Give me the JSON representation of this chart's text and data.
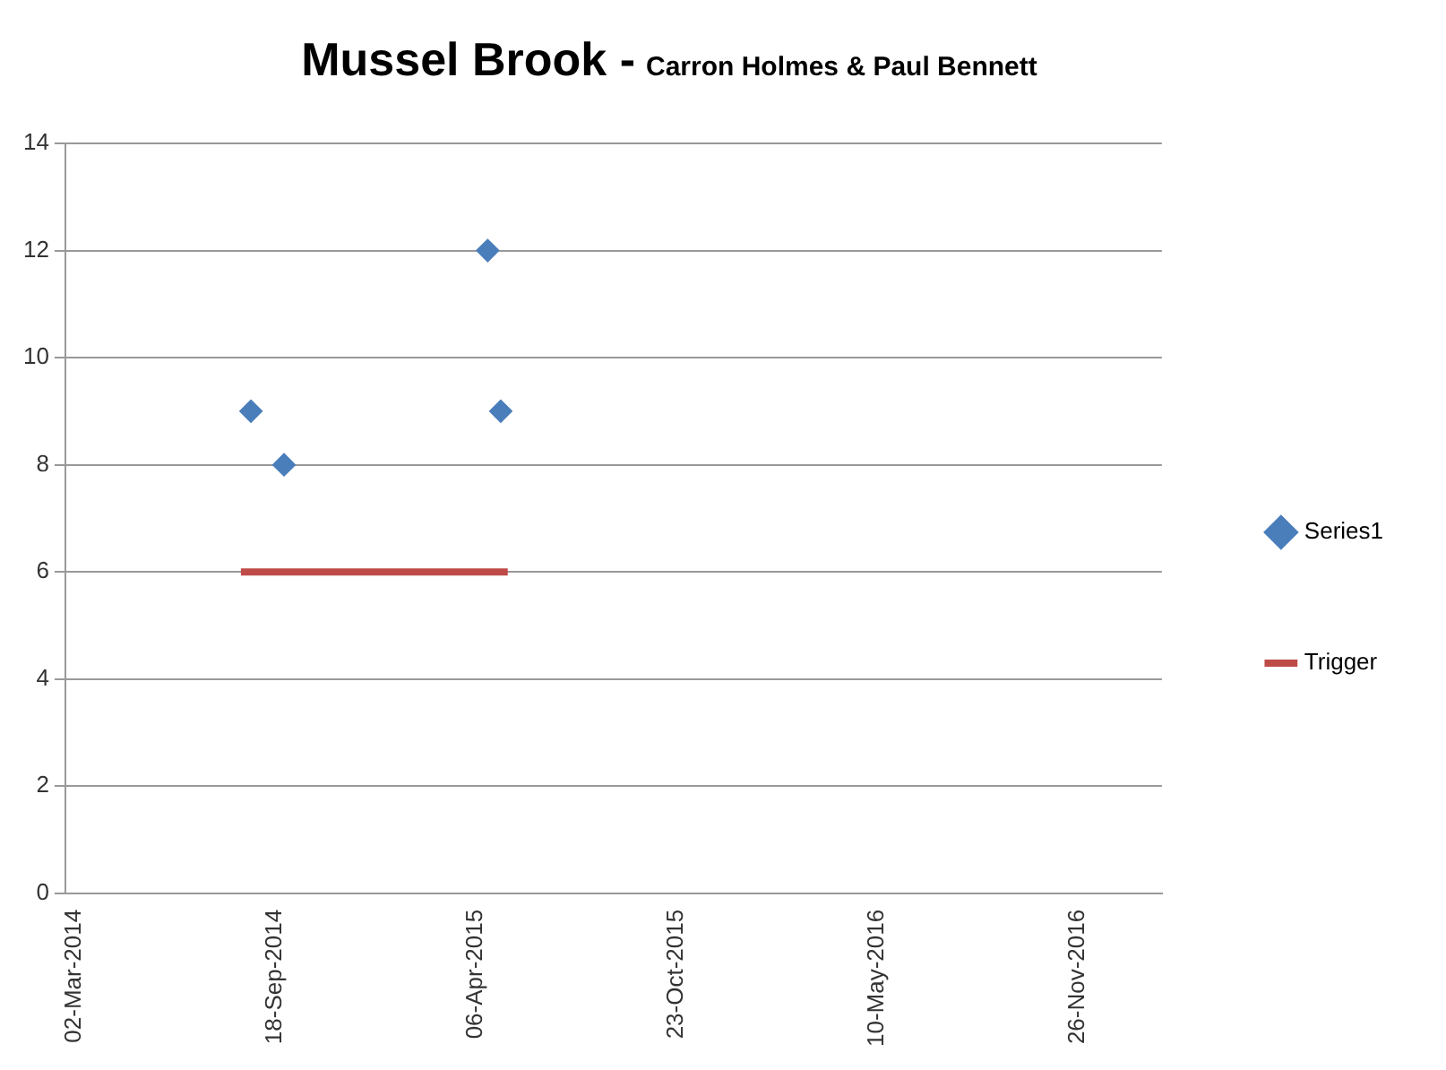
{
  "chart_data": {
    "type": "scatter",
    "title": "Mussel Brook -",
    "subtitle": "Carron Holmes & Paul Bennett",
    "xlim": [
      "2014-03-02",
      "2017-02-27"
    ],
    "xticks": [
      {
        "value": "2014-03-02",
        "label": "02-Mar-2014"
      },
      {
        "value": "2014-09-18",
        "label": "18-Sep-2014"
      },
      {
        "value": "2015-04-06",
        "label": "06-Apr-2015"
      },
      {
        "value": "2015-10-23",
        "label": "23-Oct-2015"
      },
      {
        "value": "2016-05-10",
        "label": "10-May-2016"
      },
      {
        "value": "2016-11-26",
        "label": "26-Nov-2016"
      }
    ],
    "ylim": [
      0,
      14
    ],
    "yticks": [
      0,
      2,
      4,
      6,
      8,
      10,
      12,
      14
    ],
    "grid": "y",
    "legend": "right",
    "marker": "diamond",
    "series": [
      {
        "name": "Series1",
        "color": "#4a7ebb",
        "x": [
          "2014-09-03",
          "2014-10-06",
          "2015-04-27",
          "2015-05-10"
        ],
        "values": [
          9,
          8,
          12,
          9
        ]
      },
      {
        "name": "Trigger",
        "type": "line",
        "marker": "none",
        "color": "#be4b48",
        "x": [
          "2014-08-24",
          "2015-05-17"
        ],
        "values": [
          6,
          6
        ]
      }
    ]
  }
}
